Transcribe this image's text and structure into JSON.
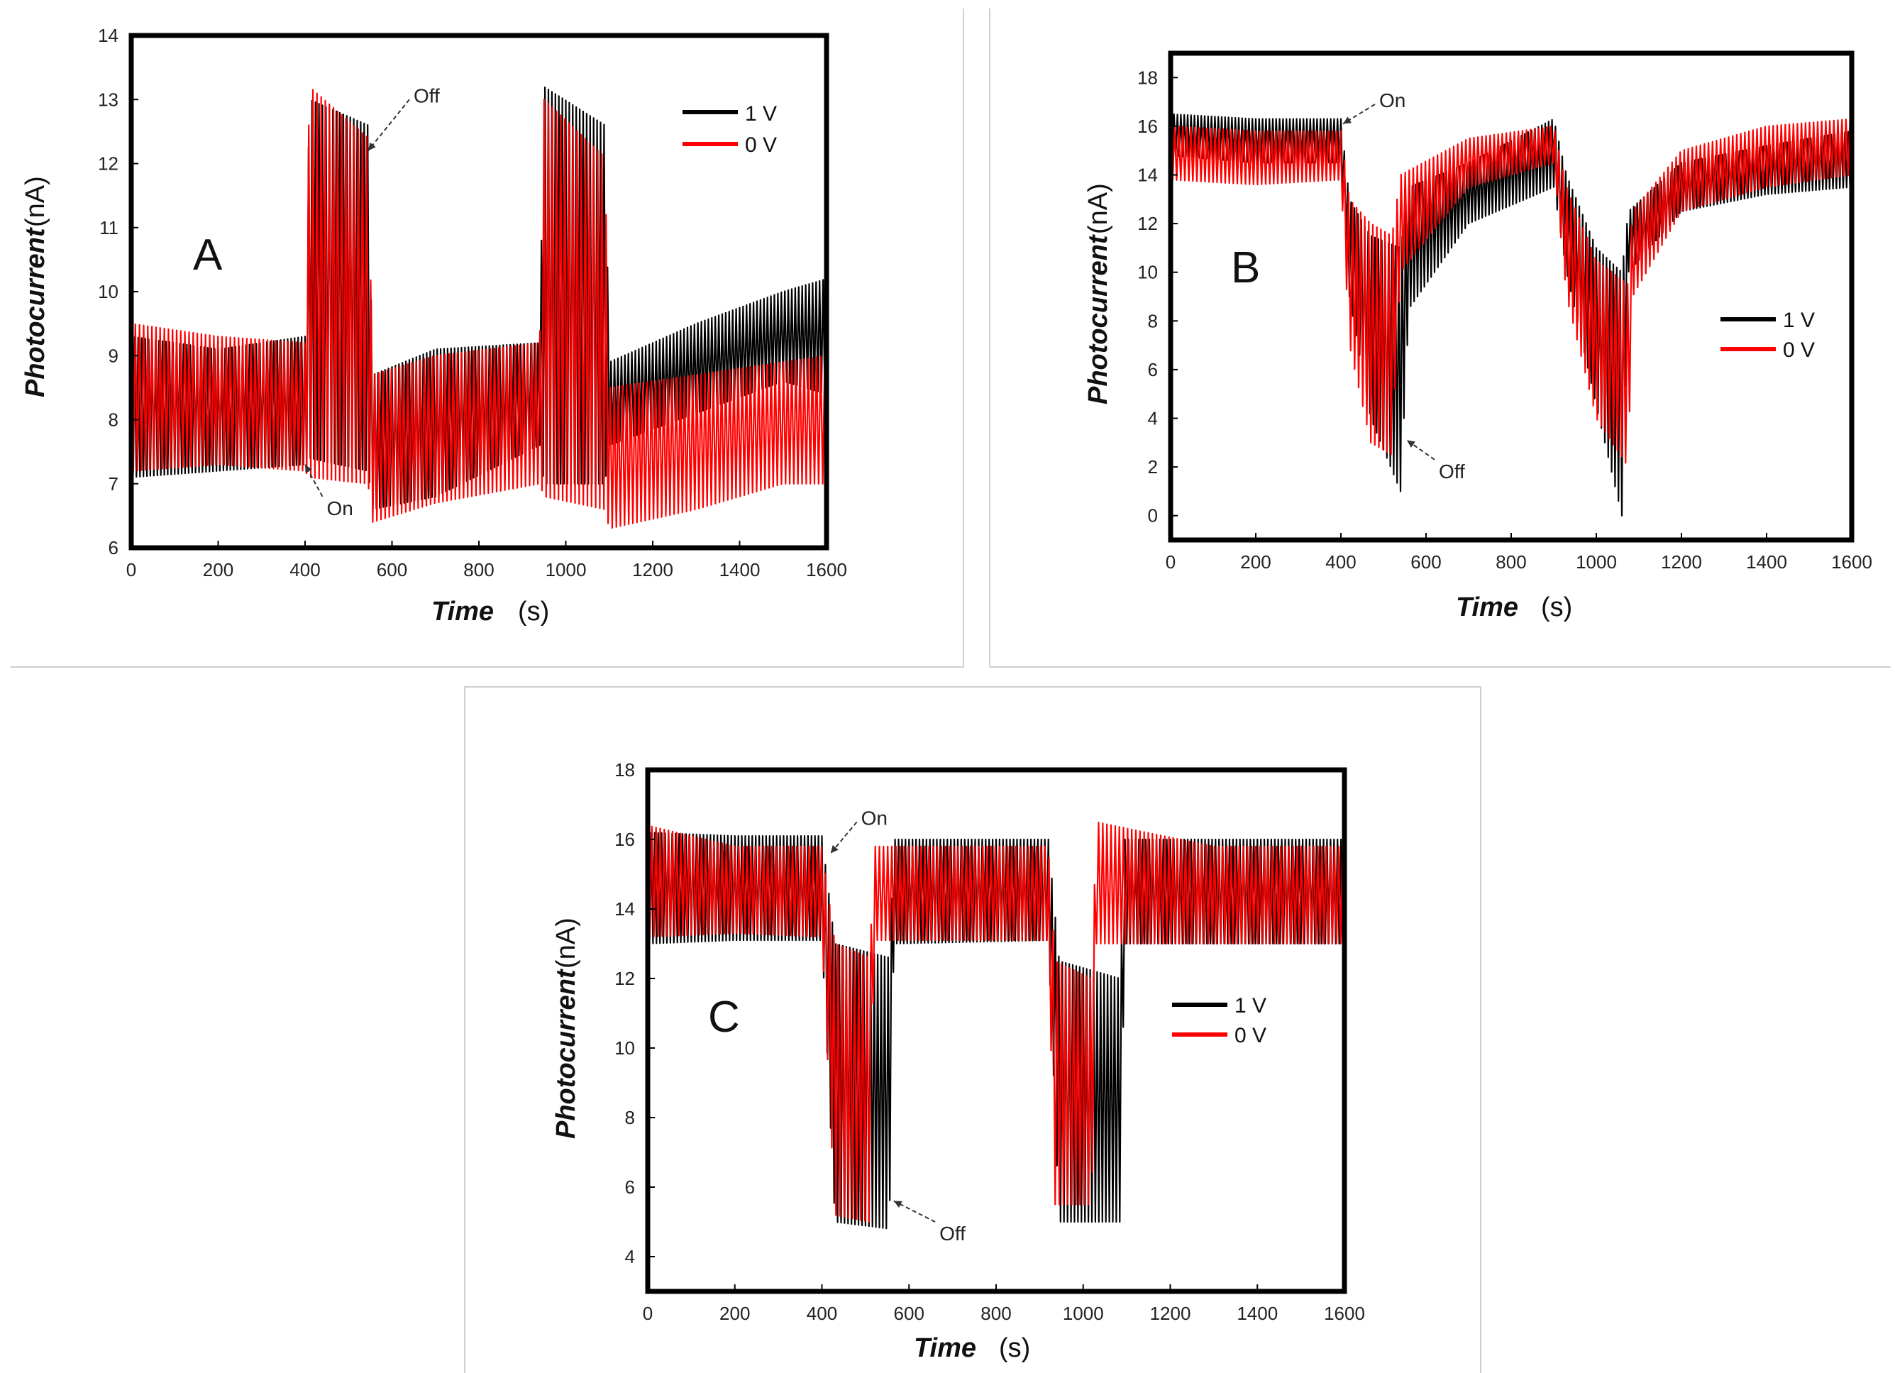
{
  "figure": {
    "colors": {
      "black_series": "#000000",
      "red_series": "#ff0000",
      "arrow": "#333333"
    }
  },
  "chart_data": [
    {
      "type": "line",
      "panel_letter": "A",
      "xlabel": {
        "main": "Time",
        "unit": "(s)"
      },
      "ylabel": {
        "main": "Photocurrent",
        "unit": "(nA)"
      },
      "xlim": [
        0,
        1600
      ],
      "ylim": [
        6,
        14
      ],
      "xticks": [
        0,
        200,
        400,
        600,
        800,
        1000,
        1200,
        1400,
        1600
      ],
      "yticks": [
        6,
        7,
        8,
        9,
        10,
        11,
        12,
        13,
        14
      ],
      "legend": {
        "position": "top-right",
        "entries": [
          "1 V",
          "0 V"
        ]
      },
      "annotations": [
        {
          "text": "On",
          "arrow_from": [
            440,
            6.8
          ],
          "arrow_to": [
            400,
            7.3
          ]
        },
        {
          "text": "Off",
          "arrow_from": [
            640,
            13.0
          ],
          "arrow_to": [
            545,
            12.2
          ]
        }
      ],
      "series": [
        {
          "name": "1 V",
          "color": "#000000",
          "envelope": [
            {
              "x": 0,
              "lo": 7.1,
              "hi": 9.3
            },
            {
              "x": 200,
              "lo": 7.2,
              "hi": 9.1
            },
            {
              "x": 400,
              "lo": 7.3,
              "hi": 9.3
            },
            {
              "x": 410,
              "lo": 7.4,
              "hi": 13.0
            },
            {
              "x": 545,
              "lo": 7.2,
              "hi": 12.6
            },
            {
              "x": 555,
              "lo": 6.6,
              "hi": 8.7
            },
            {
              "x": 700,
              "lo": 6.8,
              "hi": 9.1
            },
            {
              "x": 940,
              "lo": 7.6,
              "hi": 9.2
            },
            {
              "x": 950,
              "lo": 7.0,
              "hi": 13.2
            },
            {
              "x": 1090,
              "lo": 7.0,
              "hi": 12.6
            },
            {
              "x": 1100,
              "lo": 7.6,
              "hi": 8.9
            },
            {
              "x": 1300,
              "lo": 8.1,
              "hi": 9.5
            },
            {
              "x": 1500,
              "lo": 8.6,
              "hi": 10.0
            },
            {
              "x": 1600,
              "lo": 8.4,
              "hi": 10.2
            }
          ]
        },
        {
          "name": "0 V",
          "color": "#ff0000",
          "envelope": [
            {
              "x": 0,
              "lo": 7.2,
              "hi": 9.5
            },
            {
              "x": 200,
              "lo": 7.3,
              "hi": 9.3
            },
            {
              "x": 400,
              "lo": 7.2,
              "hi": 9.2
            },
            {
              "x": 410,
              "lo": 7.1,
              "hi": 13.2
            },
            {
              "x": 545,
              "lo": 7.0,
              "hi": 12.4
            },
            {
              "x": 555,
              "lo": 6.4,
              "hi": 8.7
            },
            {
              "x": 700,
              "lo": 6.7,
              "hi": 9.0
            },
            {
              "x": 940,
              "lo": 7.0,
              "hi": 9.2
            },
            {
              "x": 950,
              "lo": 6.8,
              "hi": 13.0
            },
            {
              "x": 1090,
              "lo": 6.6,
              "hi": 12.1
            },
            {
              "x": 1100,
              "lo": 6.3,
              "hi": 8.5
            },
            {
              "x": 1300,
              "lo": 6.6,
              "hi": 8.7
            },
            {
              "x": 1500,
              "lo": 7.0,
              "hi": 8.9
            },
            {
              "x": 1600,
              "lo": 7.0,
              "hi": 9.0
            }
          ]
        }
      ]
    },
    {
      "type": "line",
      "panel_letter": "B",
      "xlabel": {
        "main": "Time",
        "unit": "(s)"
      },
      "ylabel": {
        "main": "Photocurrent",
        "unit": "(nA)"
      },
      "xlim": [
        0,
        1600
      ],
      "ylim": [
        -1,
        19
      ],
      "xticks": [
        0,
        200,
        400,
        600,
        800,
        1000,
        1200,
        1400,
        1600
      ],
      "yticks": [
        0,
        2,
        4,
        6,
        8,
        10,
        12,
        14,
        16,
        18
      ],
      "legend": {
        "position": "right",
        "entries": [
          "1 V",
          "0 V"
        ]
      },
      "annotations": [
        {
          "text": "On",
          "arrow_from": [
            480,
            16.9
          ],
          "arrow_to": [
            405,
            16.1
          ]
        },
        {
          "text": "Off",
          "arrow_from": [
            620,
            2.3
          ],
          "arrow_to": [
            555,
            3.1
          ]
        }
      ],
      "series": [
        {
          "name": "1 V",
          "color": "#000000",
          "envelope": [
            {
              "x": 0,
              "lo": 14.8,
              "hi": 16.5
            },
            {
              "x": 200,
              "lo": 14.5,
              "hi": 16.3
            },
            {
              "x": 400,
              "lo": 14.5,
              "hi": 16.3
            },
            {
              "x": 420,
              "lo": 9.0,
              "hi": 13.0
            },
            {
              "x": 470,
              "lo": 4.0,
              "hi": 11.5
            },
            {
              "x": 540,
              "lo": 1.0,
              "hi": 11.0
            },
            {
              "x": 560,
              "lo": 8.5,
              "hi": 13.5
            },
            {
              "x": 700,
              "lo": 12.0,
              "hi": 14.5
            },
            {
              "x": 900,
              "lo": 13.5,
              "hi": 16.3
            },
            {
              "x": 930,
              "lo": 10.0,
              "hi": 14.0
            },
            {
              "x": 1000,
              "lo": 4.5,
              "hi": 11.0
            },
            {
              "x": 1060,
              "lo": 0.0,
              "hi": 10.0
            },
            {
              "x": 1075,
              "lo": 10.0,
              "hi": 12.5
            },
            {
              "x": 1200,
              "lo": 12.5,
              "hi": 14.5
            },
            {
              "x": 1400,
              "lo": 13.2,
              "hi": 15.2
            },
            {
              "x": 1600,
              "lo": 13.5,
              "hi": 15.8
            }
          ]
        },
        {
          "name": "0 V",
          "color": "#ff0000",
          "envelope": [
            {
              "x": 0,
              "lo": 13.8,
              "hi": 16.0
            },
            {
              "x": 200,
              "lo": 13.6,
              "hi": 15.8
            },
            {
              "x": 400,
              "lo": 13.8,
              "hi": 15.8
            },
            {
              "x": 420,
              "lo": 7.0,
              "hi": 13.0
            },
            {
              "x": 470,
              "lo": 3.0,
              "hi": 12.0
            },
            {
              "x": 520,
              "lo": 2.5,
              "hi": 11.5
            },
            {
              "x": 540,
              "lo": 10.0,
              "hi": 14.0
            },
            {
              "x": 700,
              "lo": 13.5,
              "hi": 15.5
            },
            {
              "x": 900,
              "lo": 14.5,
              "hi": 16.0
            },
            {
              "x": 930,
              "lo": 9.0,
              "hi": 13.5
            },
            {
              "x": 1000,
              "lo": 4.0,
              "hi": 10.5
            },
            {
              "x": 1075,
              "lo": 2.0,
              "hi": 9.5
            },
            {
              "x": 1085,
              "lo": 9.0,
              "hi": 12.5
            },
            {
              "x": 1200,
              "lo": 12.5,
              "hi": 15.0
            },
            {
              "x": 1400,
              "lo": 13.5,
              "hi": 16.0
            },
            {
              "x": 1600,
              "lo": 14.0,
              "hi": 16.3
            }
          ]
        }
      ]
    },
    {
      "type": "line",
      "panel_letter": "C",
      "xlabel": {
        "main": "Time",
        "unit": "(s)"
      },
      "ylabel": {
        "main": "Photocurrent",
        "unit": "(nA)"
      },
      "xlim": [
        0,
        1600
      ],
      "ylim": [
        3,
        18
      ],
      "xticks": [
        0,
        200,
        400,
        600,
        800,
        1000,
        1200,
        1400,
        1600
      ],
      "yticks": [
        4,
        6,
        8,
        10,
        12,
        14,
        16,
        18
      ],
      "legend": {
        "position": "right",
        "entries": [
          "1 V",
          "0 V"
        ]
      },
      "annotations": [
        {
          "text": "On",
          "arrow_from": [
            480,
            16.5
          ],
          "arrow_to": [
            420,
            15.6
          ]
        },
        {
          "text": "Off",
          "arrow_from": [
            660,
            5.0
          ],
          "arrow_to": [
            565,
            5.6
          ]
        }
      ],
      "series": [
        {
          "name": "1 V",
          "color": "#000000",
          "envelope": [
            {
              "x": 0,
              "lo": 13.0,
              "hi": 16.2
            },
            {
              "x": 200,
              "lo": 13.1,
              "hi": 16.1
            },
            {
              "x": 400,
              "lo": 13.1,
              "hi": 16.1
            },
            {
              "x": 430,
              "lo": 5.0,
              "hi": 13.0
            },
            {
              "x": 555,
              "lo": 4.8,
              "hi": 12.6
            },
            {
              "x": 565,
              "lo": 13.0,
              "hi": 16.0
            },
            {
              "x": 920,
              "lo": 13.1,
              "hi": 16.0
            },
            {
              "x": 945,
              "lo": 5.0,
              "hi": 12.5
            },
            {
              "x": 1085,
              "lo": 5.0,
              "hi": 12.0
            },
            {
              "x": 1095,
              "lo": 13.0,
              "hi": 16.0
            },
            {
              "x": 1300,
              "lo": 13.0,
              "hi": 16.0
            },
            {
              "x": 1600,
              "lo": 13.0,
              "hi": 16.0
            }
          ]
        },
        {
          "name": "0 V",
          "color": "#ff0000",
          "envelope": [
            {
              "x": 0,
              "lo": 13.2,
              "hi": 16.4
            },
            {
              "x": 200,
              "lo": 13.3,
              "hi": 15.8
            },
            {
              "x": 400,
              "lo": 13.2,
              "hi": 15.8
            },
            {
              "x": 430,
              "lo": 5.2,
              "hi": 13.0
            },
            {
              "x": 510,
              "lo": 5.0,
              "hi": 12.6
            },
            {
              "x": 520,
              "lo": 13.1,
              "hi": 15.8
            },
            {
              "x": 920,
              "lo": 13.1,
              "hi": 15.8
            },
            {
              "x": 935,
              "lo": 5.5,
              "hi": 12.5
            },
            {
              "x": 1020,
              "lo": 5.5,
              "hi": 12.0
            },
            {
              "x": 1030,
              "lo": 13.0,
              "hi": 16.5
            },
            {
              "x": 1300,
              "lo": 13.0,
              "hi": 15.8
            },
            {
              "x": 1600,
              "lo": 13.0,
              "hi": 15.8
            }
          ]
        }
      ]
    }
  ]
}
